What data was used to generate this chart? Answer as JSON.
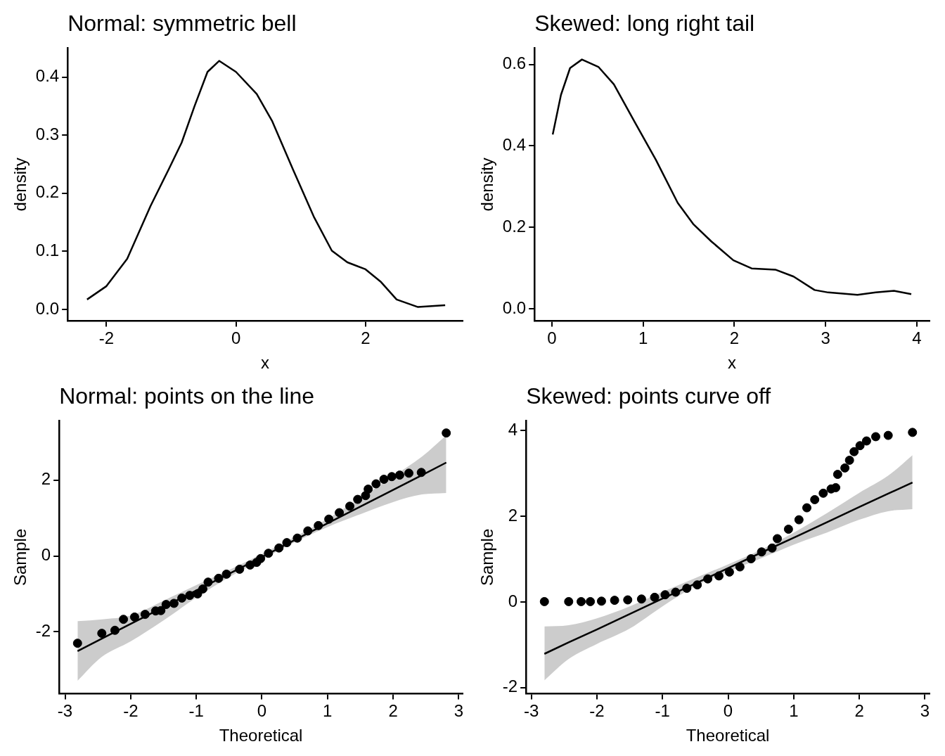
{
  "chart_data": [
    {
      "type": "line",
      "title": "Normal: symmetric bell",
      "xlabel": "x",
      "ylabel": "density",
      "xlim": [
        -2.6,
        3.5
      ],
      "ylim": [
        -0.02,
        0.45
      ],
      "xticks": [
        -2,
        0,
        2
      ],
      "yticks": [
        {
          "value": 0,
          "label": "0.0"
        },
        {
          "value": 0.1,
          "label": "0.1"
        },
        {
          "value": 0.2,
          "label": "0.2"
        },
        {
          "value": 0.3,
          "label": "0.3"
        },
        {
          "value": 0.4,
          "label": "0.4"
        }
      ],
      "grid": false,
      "legend": false,
      "marker": "none",
      "line_style": "solid",
      "series": [
        {
          "color": "#000000",
          "x": [
            -2.3,
            -2.0,
            -1.68,
            -1.32,
            -1.04,
            -0.84,
            -0.64,
            -0.44,
            -0.26,
            0,
            0.32,
            0.56,
            0.88,
            1.2,
            1.48,
            1.72,
            2.0,
            2.24,
            2.48,
            2.81,
            3.23
          ],
          "values": [
            0.017,
            0.04,
            0.087,
            0.178,
            0.241,
            0.287,
            0.35,
            0.409,
            0.428,
            0.409,
            0.371,
            0.324,
            0.241,
            0.16,
            0.101,
            0.081,
            0.069,
            0.047,
            0.017,
            0.004,
            0.007
          ]
        }
      ]
    },
    {
      "type": "line",
      "title": "Skewed: long right tail",
      "xlabel": "x",
      "ylabel": "density",
      "xlim": [
        -0.19,
        4.14
      ],
      "ylim": [
        -0.03,
        0.64
      ],
      "xticks": [
        0,
        1,
        2,
        3,
        4
      ],
      "yticks": [
        {
          "value": 0,
          "label": "0.0"
        },
        {
          "value": 0.2,
          "label": "0.2"
        },
        {
          "value": 0.4,
          "label": "0.4"
        },
        {
          "value": 0.6,
          "label": "0.6"
        }
      ],
      "grid": false,
      "legend": false,
      "marker": "none",
      "line_style": "solid",
      "series": [
        {
          "color": "#000000",
          "x": [
            0.01,
            0.1,
            0.2,
            0.33,
            0.51,
            0.68,
            0.91,
            1.14,
            1.38,
            1.55,
            1.75,
            1.99,
            2.19,
            2.45,
            2.65,
            2.88,
            3.03,
            3.35,
            3.55,
            3.75,
            3.94
          ],
          "values": [
            0.428,
            0.525,
            0.591,
            0.612,
            0.594,
            0.551,
            0.458,
            0.366,
            0.26,
            0.208,
            0.165,
            0.119,
            0.099,
            0.096,
            0.079,
            0.046,
            0.04,
            0.034,
            0.04,
            0.044,
            0.036
          ]
        }
      ]
    },
    {
      "type": "scatter",
      "title": "Normal: points on the line",
      "xlabel": "Theoretical",
      "ylabel": "Sample",
      "xlim": [
        -3.09,
        3.06
      ],
      "ylim": [
        -3.63,
        3.56
      ],
      "xticks": [
        -3,
        -2,
        -1,
        0,
        1,
        2,
        3
      ],
      "yticks": [
        -2,
        0,
        2
      ],
      "grid": false,
      "legend": false,
      "marker": "circle",
      "series": [
        {
          "color": "#000000",
          "x": [
            -2.81,
            -2.44,
            -2.24,
            -2.11,
            -1.94,
            -1.78,
            -1.62,
            -1.54,
            -1.46,
            -1.34,
            -1.22,
            -1.1,
            -0.98,
            -0.9,
            -0.82,
            -0.66,
            -0.54,
            -0.34,
            -0.18,
            -0.08,
            -0.02,
            0.1,
            0.26,
            0.38,
            0.54,
            0.7,
            0.86,
            1.02,
            1.18,
            1.34,
            1.46,
            1.58,
            1.62,
            1.74,
            1.86,
            1.98,
            2.1,
            2.24,
            2.43,
            2.81
          ],
          "values": [
            -2.3,
            -2.04,
            -1.96,
            -1.67,
            -1.61,
            -1.54,
            -1.45,
            -1.44,
            -1.28,
            -1.25,
            -1.11,
            -1.04,
            -1.0,
            -0.87,
            -0.69,
            -0.59,
            -0.48,
            -0.35,
            -0.24,
            -0.17,
            -0.07,
            0.07,
            0.21,
            0.35,
            0.47,
            0.66,
            0.8,
            0.97,
            1.14,
            1.31,
            1.49,
            1.59,
            1.76,
            1.9,
            2.02,
            2.09,
            2.13,
            2.18,
            2.2,
            3.24
          ]
        },
        {
          "type": "line",
          "color": "#000000",
          "marker": "none",
          "line_style": "solid",
          "x": [
            -2.81,
            -2.44,
            -2,
            -1.5,
            -1,
            -0.5,
            0,
            0.5,
            1,
            1.5,
            2,
            2.44,
            2.81
          ],
          "values": [
            -2.51,
            -2.18,
            -1.79,
            -1.35,
            -0.91,
            -0.47,
            -0.03,
            0.42,
            0.86,
            1.3,
            1.74,
            2.13,
            2.46
          ],
          "upper": [
            -1.72,
            -1.67,
            -1.57,
            -1.18,
            -0.77,
            -0.37,
            0.05,
            0.5,
            0.98,
            1.52,
            2.1,
            2.62,
            3.18
          ],
          "lower": [
            -3.29,
            -2.66,
            -2.25,
            -1.7,
            -1.1,
            -0.56,
            -0.1,
            0.36,
            0.76,
            1.1,
            1.42,
            1.62,
            1.66
          ]
        }
      ]
    },
    {
      "type": "scatter",
      "title": "Skewed: points curve off",
      "xlabel": "Theoretical",
      "ylabel": "Sample",
      "xlim": [
        -3.08,
        3.07
      ],
      "ylim": [
        -2.14,
        4.23
      ],
      "xticks": [
        -3,
        -2,
        -1,
        0,
        1,
        2,
        3
      ],
      "yticks": [
        -2,
        0,
        2,
        4
      ],
      "grid": false,
      "legend": false,
      "marker": "circle",
      "series": [
        {
          "color": "#000000",
          "x": [
            -2.8,
            -2.43,
            -2.24,
            -2.1,
            -1.93,
            -1.73,
            -1.53,
            -1.32,
            -1.12,
            -0.96,
            -0.8,
            -0.63,
            -0.47,
            -0.31,
            -0.14,
            0.02,
            0.18,
            0.35,
            0.51,
            0.67,
            0.75,
            0.92,
            1.08,
            1.2,
            1.32,
            1.45,
            1.57,
            1.64,
            1.67,
            1.78,
            1.85,
            1.92,
            2.01,
            2.11,
            2.25,
            2.44,
            2.81
          ],
          "values": [
            0.01,
            0.01,
            0.01,
            0.01,
            0.02,
            0.04,
            0.05,
            0.07,
            0.11,
            0.17,
            0.23,
            0.32,
            0.4,
            0.54,
            0.61,
            0.7,
            0.82,
            1.01,
            1.17,
            1.26,
            1.48,
            1.7,
            1.92,
            2.2,
            2.39,
            2.54,
            2.64,
            2.67,
            2.98,
            3.13,
            3.31,
            3.51,
            3.65,
            3.76,
            3.86,
            3.89,
            3.96
          ]
        },
        {
          "type": "line",
          "color": "#000000",
          "marker": "none",
          "line_style": "solid",
          "x": [
            -2.8,
            -2.43,
            -2,
            -1.5,
            -1,
            -0.5,
            0,
            0.5,
            1,
            1.5,
            2,
            2.44,
            2.81
          ],
          "values": [
            -1.21,
            -0.94,
            -0.64,
            -0.28,
            0.08,
            0.43,
            0.79,
            1.15,
            1.5,
            1.86,
            2.22,
            2.53,
            2.79
          ],
          "upper": [
            -0.57,
            -0.54,
            -0.38,
            -0.1,
            0.24,
            0.56,
            0.88,
            1.22,
            1.62,
            2.07,
            2.55,
            2.95,
            3.43
          ],
          "lower": [
            -1.83,
            -1.33,
            -0.98,
            -0.62,
            -0.1,
            0.37,
            0.71,
            1.02,
            1.34,
            1.62,
            1.92,
            2.12,
            2.17
          ]
        }
      ]
    }
  ]
}
